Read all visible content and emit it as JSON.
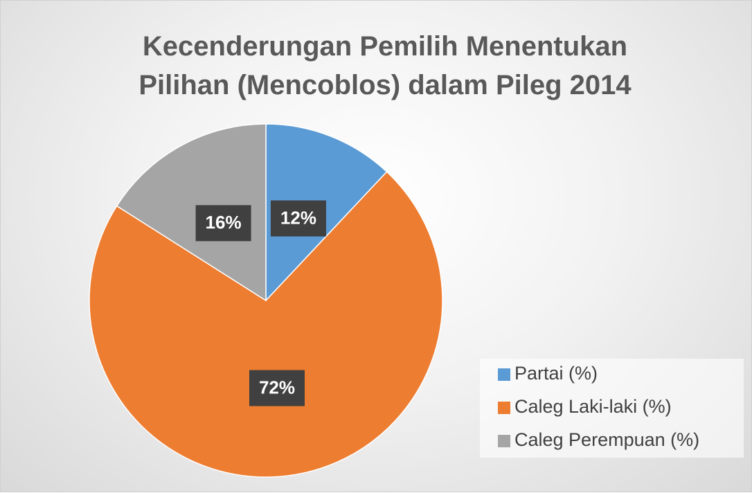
{
  "chart_data": {
    "type": "pie",
    "title": "Kecenderungan Pemilih Menentukan Pilihan (Mencoblos) dalam Pileg 2014",
    "categories": [
      "Partai (%)",
      "Caleg Laki-laki (%)",
      "Caleg Perempuan (%)"
    ],
    "values": [
      12,
      72,
      16
    ],
    "value_labels": [
      "12%",
      "72%",
      "16%"
    ],
    "colors": [
      "#5b9bd5",
      "#ed7d31",
      "#a5a5a5"
    ],
    "legend": "right"
  }
}
